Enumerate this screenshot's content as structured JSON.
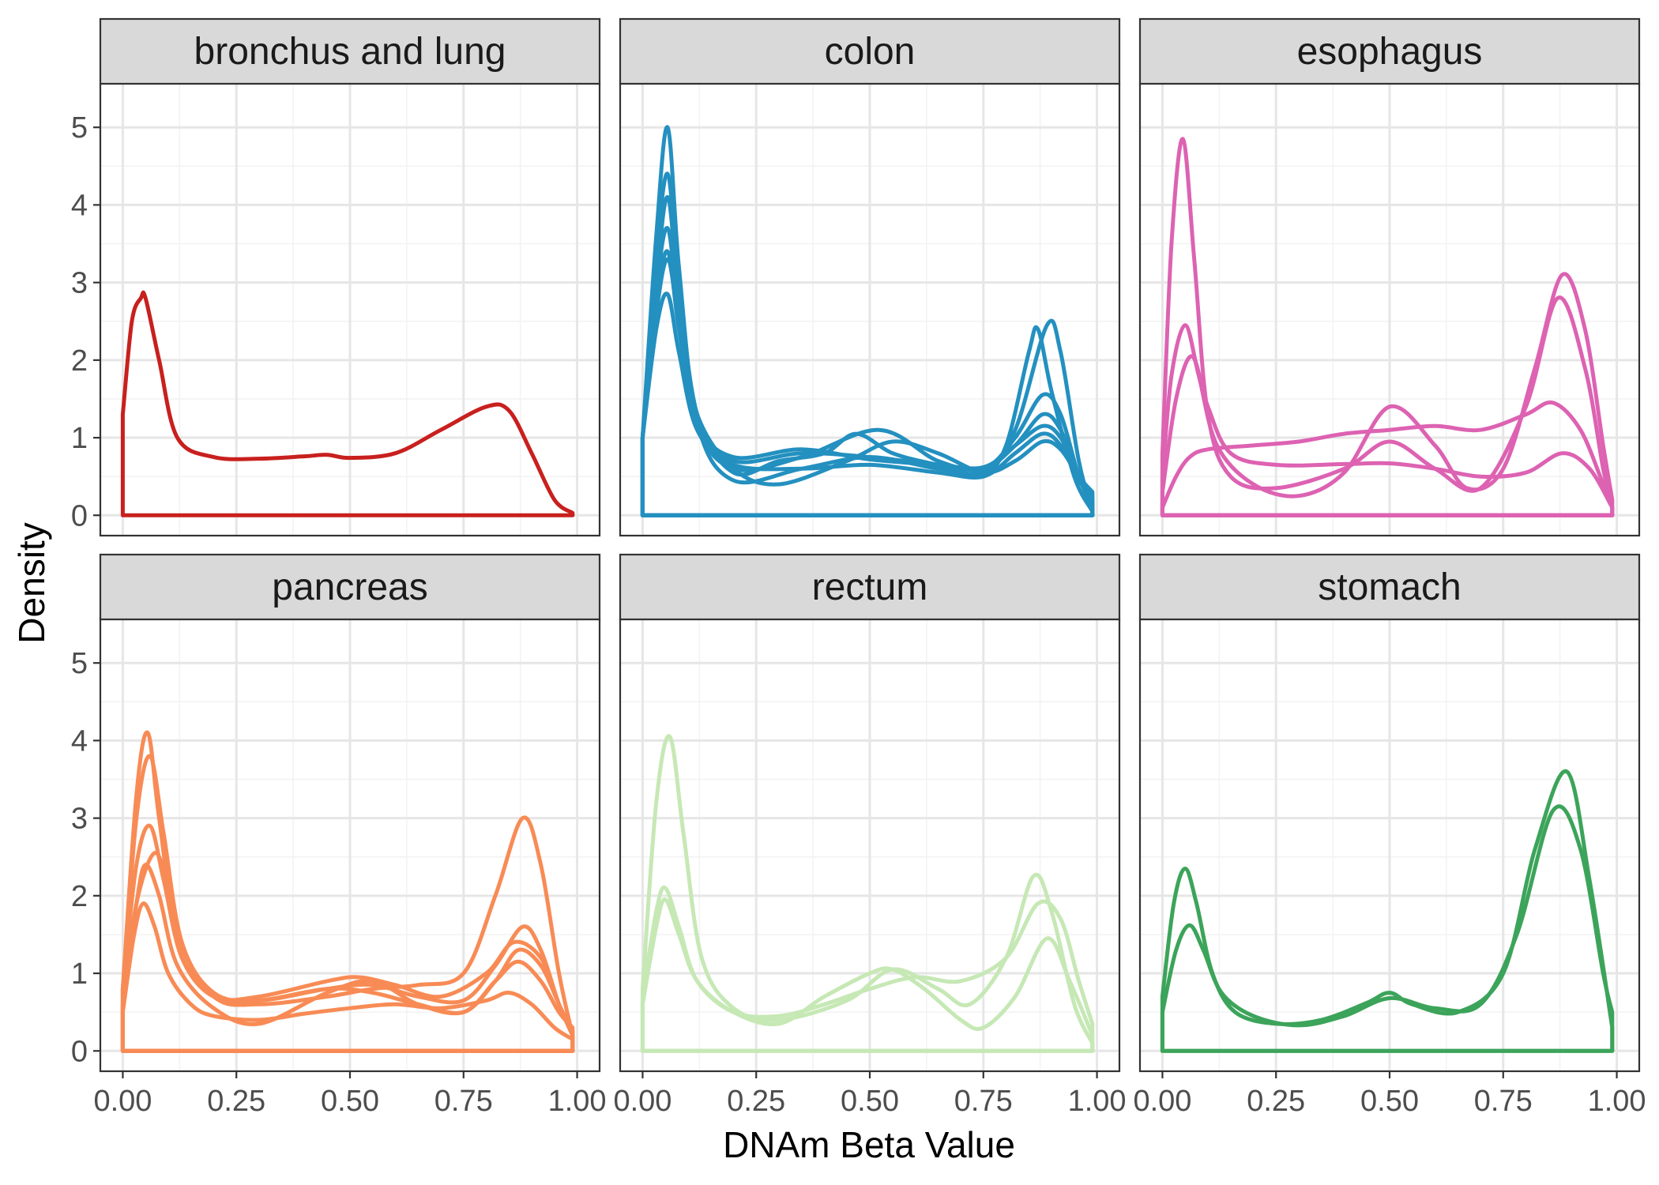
{
  "chart_data": {
    "type": "line",
    "chart_kind": "faceted density plot",
    "xlabel": "DNAm Beta Value",
    "ylabel": "Density",
    "xlim": [
      0,
      1
    ],
    "ylim": [
      0,
      5.3
    ],
    "x_ticks": [
      "0.00",
      "0.25",
      "0.50",
      "0.75",
      "1.00"
    ],
    "y_ticks": [
      "0",
      "1",
      "2",
      "3",
      "4",
      "5"
    ],
    "grid": true,
    "facet_layout": "2 rows x 3 columns",
    "facets": [
      {
        "label": "bronchus and lung",
        "color": "#C8201E",
        "series": [
          {
            "x": [
              0,
              0.02,
              0.04,
              0.05,
              0.08,
              0.12,
              0.2,
              0.3,
              0.4,
              0.45,
              0.5,
              0.6,
              0.7,
              0.8,
              0.85,
              0.9,
              0.95,
              0.99
            ],
            "y": [
              1.3,
              2.5,
              2.8,
              2.8,
              2.0,
              1.0,
              0.75,
              0.73,
              0.76,
              0.78,
              0.74,
              0.8,
              1.1,
              1.4,
              1.35,
              0.8,
              0.2,
              0.03
            ]
          }
        ]
      },
      {
        "label": "colon",
        "color": "#2390C0",
        "series": [
          {
            "x": [
              0,
              0.03,
              0.055,
              0.08,
              0.12,
              0.2,
              0.35,
              0.5,
              0.65,
              0.75,
              0.8,
              0.85,
              0.87,
              0.9,
              0.95,
              0.99
            ],
            "y": [
              1.0,
              3.6,
              5.0,
              3.2,
              1.2,
              0.45,
              0.6,
              0.75,
              0.6,
              0.55,
              0.9,
              2.1,
              2.4,
              1.6,
              0.5,
              0.05
            ]
          },
          {
            "x": [
              0,
              0.03,
              0.055,
              0.08,
              0.12,
              0.2,
              0.3,
              0.4,
              0.47,
              0.55,
              0.65,
              0.75,
              0.82,
              0.89,
              0.92,
              0.96,
              0.99
            ],
            "y": [
              1.0,
              3.3,
              4.4,
              3.0,
              1.3,
              0.55,
              0.7,
              0.8,
              1.05,
              0.8,
              0.65,
              0.55,
              1.1,
              2.45,
              2.1,
              0.7,
              0.05
            ]
          },
          {
            "x": [
              0,
              0.03,
              0.055,
              0.08,
              0.12,
              0.2,
              0.35,
              0.52,
              0.65,
              0.75,
              0.82,
              0.88,
              0.92,
              0.96,
              0.99
            ],
            "y": [
              1.0,
              3.0,
              4.1,
              2.8,
              1.2,
              0.6,
              0.75,
              1.1,
              0.7,
              0.6,
              1.0,
              1.55,
              1.3,
              0.5,
              0.1
            ]
          },
          {
            "x": [
              0,
              0.03,
              0.055,
              0.08,
              0.12,
              0.2,
              0.35,
              0.5,
              0.65,
              0.75,
              0.82,
              0.88,
              0.92,
              0.96,
              0.99
            ],
            "y": [
              1.0,
              2.9,
              3.7,
              2.6,
              1.2,
              0.7,
              0.8,
              0.75,
              0.65,
              0.6,
              0.9,
              1.3,
              1.1,
              0.5,
              0.15
            ]
          },
          {
            "x": [
              0,
              0.03,
              0.055,
              0.08,
              0.12,
              0.2,
              0.35,
              0.5,
              0.65,
              0.75,
              0.82,
              0.88,
              0.92,
              0.96,
              0.99
            ],
            "y": [
              1.0,
              2.7,
              3.4,
              2.4,
              1.2,
              0.75,
              0.85,
              0.72,
              0.65,
              0.62,
              0.9,
              1.15,
              1.0,
              0.5,
              0.2
            ]
          },
          {
            "x": [
              0,
              0.03,
              0.055,
              0.08,
              0.12,
              0.2,
              0.35,
              0.5,
              0.65,
              0.75,
              0.82,
              0.88,
              0.92,
              0.96,
              0.99
            ],
            "y": [
              1.0,
              2.4,
              2.85,
              2.1,
              1.1,
              0.65,
              0.6,
              0.65,
              0.55,
              0.5,
              0.8,
              1.05,
              0.9,
              0.45,
              0.25
            ]
          },
          {
            "x": [
              0,
              0.03,
              0.055,
              0.08,
              0.12,
              0.2,
              0.3,
              0.45,
              0.55,
              0.65,
              0.75,
              0.82,
              0.88,
              0.92,
              0.96,
              0.99
            ],
            "y": [
              1.0,
              2.6,
              3.3,
              2.5,
              1.3,
              0.6,
              0.4,
              0.7,
              0.95,
              0.8,
              0.55,
              0.7,
              0.95,
              0.85,
              0.5,
              0.3
            ]
          }
        ]
      },
      {
        "label": "esophagus",
        "color": "#DD62B2",
        "series": [
          {
            "x": [
              0,
              0.02,
              0.045,
              0.07,
              0.1,
              0.15,
              0.25,
              0.4,
              0.5,
              0.6,
              0.7,
              0.8,
              0.87,
              0.93,
              0.97,
              0.99
            ],
            "y": [
              0.8,
              3.5,
              4.85,
              3.3,
              1.3,
              0.5,
              0.35,
              0.6,
              0.95,
              0.6,
              0.35,
              1.4,
              2.8,
              1.9,
              0.6,
              0.1
            ]
          },
          {
            "x": [
              0,
              0.02,
              0.05,
              0.08,
              0.12,
              0.2,
              0.3,
              0.4,
              0.5,
              0.6,
              0.67,
              0.75,
              0.82,
              0.88,
              0.93,
              0.97,
              0.99
            ],
            "y": [
              0.5,
              1.8,
              2.45,
              1.8,
              0.9,
              0.4,
              0.25,
              0.55,
              1.4,
              0.9,
              0.35,
              0.6,
              1.9,
              3.1,
              2.4,
              0.9,
              0.2
            ]
          },
          {
            "x": [
              0,
              0.03,
              0.065,
              0.1,
              0.15,
              0.25,
              0.4,
              0.5,
              0.6,
              0.7,
              0.8,
              0.88,
              0.94,
              0.99
            ],
            "y": [
              0.3,
              1.5,
              2.05,
              1.4,
              0.8,
              0.65,
              0.66,
              0.67,
              0.6,
              0.5,
              0.55,
              0.8,
              0.6,
              0.1
            ]
          },
          {
            "x": [
              0,
              0.03,
              0.06,
              0.1,
              0.2,
              0.3,
              0.4,
              0.5,
              0.6,
              0.7,
              0.8,
              0.86,
              0.92,
              0.97,
              0.99
            ],
            "y": [
              0.1,
              0.5,
              0.75,
              0.85,
              0.9,
              0.95,
              1.05,
              1.1,
              1.15,
              1.1,
              1.3,
              1.45,
              1.1,
              0.4,
              0.1
            ]
          }
        ]
      },
      {
        "label": "pancreas",
        "color": "#F88B55",
        "series": [
          {
            "x": [
              0,
              0.03,
              0.055,
              0.08,
              0.12,
              0.2,
              0.3,
              0.45,
              0.55,
              0.65,
              0.75,
              0.82,
              0.88,
              0.92,
              0.96,
              0.99
            ],
            "y": [
              0.8,
              3.3,
              4.1,
              3.0,
              1.5,
              0.7,
              0.6,
              0.7,
              0.8,
              0.85,
              1.0,
              2.0,
              3.0,
              2.4,
              1.0,
              0.2
            ]
          },
          {
            "x": [
              0,
              0.03,
              0.06,
              0.09,
              0.13,
              0.2,
              0.3,
              0.45,
              0.55,
              0.65,
              0.75,
              0.82,
              0.88,
              0.92,
              0.96,
              0.99
            ],
            "y": [
              0.8,
              3.0,
              3.8,
              2.8,
              1.4,
              0.75,
              0.65,
              0.8,
              0.85,
              0.7,
              0.65,
              1.1,
              1.6,
              1.3,
              0.6,
              0.2
            ]
          },
          {
            "x": [
              0,
              0.03,
              0.06,
              0.09,
              0.13,
              0.2,
              0.3,
              0.45,
              0.52,
              0.6,
              0.7,
              0.8,
              0.86,
              0.92,
              0.96,
              0.99
            ],
            "y": [
              0.8,
              2.4,
              2.9,
              2.2,
              1.2,
              0.7,
              0.7,
              0.9,
              0.95,
              0.85,
              0.7,
              1.0,
              1.4,
              1.2,
              0.6,
              0.2
            ]
          },
          {
            "x": [
              0,
              0.03,
              0.07,
              0.1,
              0.14,
              0.2,
              0.3,
              0.45,
              0.55,
              0.65,
              0.75,
              0.82,
              0.87,
              0.92,
              0.96,
              0.99
            ],
            "y": [
              0.6,
              1.9,
              2.55,
              2.1,
              1.2,
              0.7,
              0.65,
              0.8,
              0.75,
              0.6,
              0.5,
              0.9,
              1.3,
              1.1,
              0.6,
              0.25
            ]
          },
          {
            "x": [
              0,
              0.03,
              0.05,
              0.08,
              0.12,
              0.2,
              0.3,
              0.45,
              0.55,
              0.65,
              0.75,
              0.82,
              0.87,
              0.92,
              0.96,
              0.99
            ],
            "y": [
              0.6,
              1.9,
              2.4,
              2.0,
              1.1,
              0.55,
              0.35,
              0.75,
              0.9,
              0.6,
              0.5,
              0.9,
              1.15,
              0.9,
              0.5,
              0.3
            ]
          },
          {
            "x": [
              0,
              0.025,
              0.045,
              0.07,
              0.1,
              0.15,
              0.2,
              0.3,
              0.4,
              0.5,
              0.6,
              0.7,
              0.8,
              0.85,
              0.9,
              0.95,
              0.99
            ],
            "y": [
              0.5,
              1.5,
              1.9,
              1.6,
              1.0,
              0.6,
              0.45,
              0.4,
              0.48,
              0.55,
              0.6,
              0.55,
              0.65,
              0.75,
              0.6,
              0.3,
              0.15
            ]
          }
        ]
      },
      {
        "label": "rectum",
        "color": "#C6E8B5",
        "series": [
          {
            "x": [
              0,
              0.03,
              0.06,
              0.09,
              0.13,
              0.2,
              0.3,
              0.45,
              0.55,
              0.65,
              0.72,
              0.8,
              0.86,
              0.9,
              0.95,
              0.99
            ],
            "y": [
              0.8,
              3.2,
              4.05,
              2.8,
              1.2,
              0.55,
              0.4,
              0.65,
              1.05,
              0.8,
              0.6,
              1.2,
              2.25,
              1.8,
              0.6,
              0.1
            ]
          },
          {
            "x": [
              0,
              0.03,
              0.05,
              0.08,
              0.12,
              0.2,
              0.3,
              0.4,
              0.5,
              0.6,
              0.7,
              0.8,
              0.87,
              0.92,
              0.96,
              0.99
            ],
            "y": [
              0.7,
              1.8,
              2.1,
              1.6,
              0.9,
              0.5,
              0.45,
              0.6,
              0.8,
              0.95,
              0.9,
              1.2,
              1.9,
              1.7,
              0.9,
              0.35
            ]
          },
          {
            "x": [
              0,
              0.03,
              0.05,
              0.08,
              0.12,
              0.2,
              0.3,
              0.4,
              0.5,
              0.55,
              0.62,
              0.7,
              0.75,
              0.82,
              0.89,
              0.94,
              0.99
            ],
            "y": [
              0.6,
              1.6,
              1.95,
              1.5,
              0.9,
              0.5,
              0.35,
              0.7,
              1.0,
              1.05,
              0.8,
              0.4,
              0.3,
              0.7,
              1.45,
              0.9,
              0.2
            ]
          }
        ]
      },
      {
        "label": "stomach",
        "color": "#3CA45A",
        "series": [
          {
            "x": [
              0,
              0.025,
              0.05,
              0.075,
              0.11,
              0.16,
              0.25,
              0.35,
              0.45,
              0.5,
              0.55,
              0.65,
              0.75,
              0.82,
              0.89,
              0.94,
              0.99
            ],
            "y": [
              0.7,
              1.9,
              2.35,
              1.9,
              1.0,
              0.5,
              0.35,
              0.4,
              0.62,
              0.75,
              0.6,
              0.5,
              1.0,
              2.6,
              3.6,
              2.2,
              0.3
            ]
          },
          {
            "x": [
              0,
              0.03,
              0.06,
              0.09,
              0.13,
              0.2,
              0.3,
              0.4,
              0.5,
              0.6,
              0.7,
              0.78,
              0.86,
              0.92,
              0.97,
              0.99
            ],
            "y": [
              0.5,
              1.3,
              1.62,
              1.3,
              0.75,
              0.45,
              0.33,
              0.45,
              0.68,
              0.55,
              0.6,
              1.5,
              3.1,
              2.6,
              1.0,
              0.5
            ]
          }
        ]
      }
    ]
  }
}
